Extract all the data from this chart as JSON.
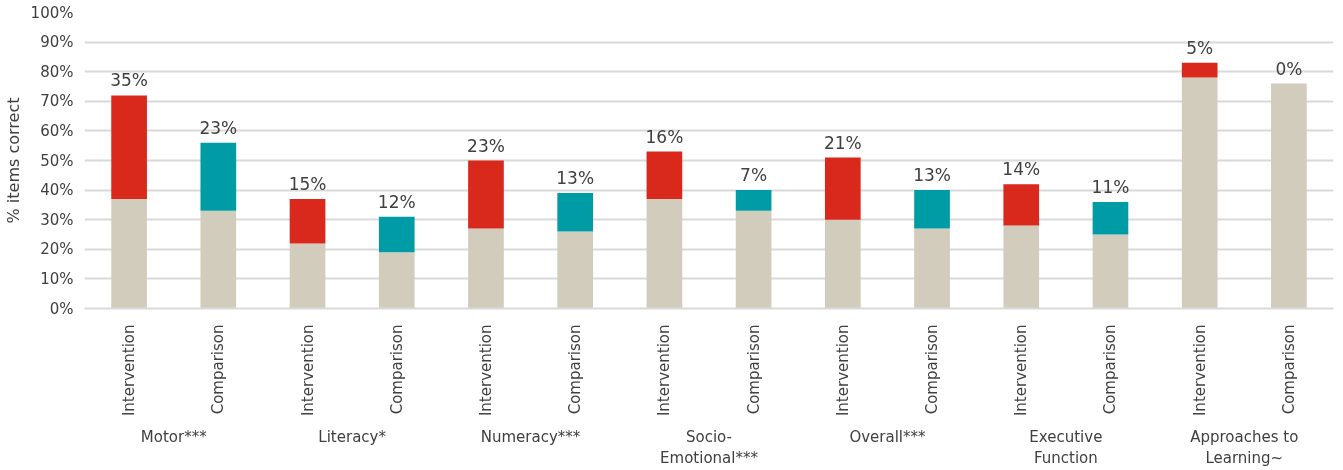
{
  "chart_data": {
    "type": "bar",
    "stacked": true,
    "ylabel": "% items correct",
    "categories": [
      "Intervention",
      "Comparison",
      "Intervention",
      "Comparison",
      "Intervention",
      "Comparison",
      "Intervention",
      "Comparison",
      "Intervention",
      "Comparison",
      "Intervention",
      "Comparison",
      "Intervention",
      "Comparison"
    ],
    "annotations": [
      "Motor***",
      "Literacy*",
      "Numeracy***",
      "Socio-Emotional***",
      "Overall***",
      "Executive Function",
      "Approaches to Learning~"
    ],
    "series": [
      {
        "color": "#d2ccbd",
        "values": [
          37,
          33,
          22,
          19,
          27,
          26,
          37,
          33,
          30,
          27,
          28,
          25,
          78,
          76
        ]
      },
      {
        "colors": [
          "#d9291c",
          "#009ca6",
          "#d9291c",
          "#009ca6",
          "#d9291c",
          "#009ca6",
          "#d9291c",
          "#009ca6",
          "#d9291c",
          "#009ca6",
          "#d9291c",
          "#009ca6",
          "#d9291c",
          "#009ca6"
        ],
        "values": [
          35,
          23,
          15,
          12,
          23,
          13,
          16,
          7,
          21,
          13,
          14,
          11,
          5,
          0
        ],
        "value_labels": [
          "35%",
          "23%",
          "15%",
          "12%",
          "23%",
          "13%",
          "16%",
          "7%",
          "21%",
          "13%",
          "14%",
          "11%",
          "5%",
          "0%"
        ]
      }
    ],
    "ylim": [
      0,
      100
    ],
    "yticks": [
      {
        "value": 0,
        "label": "0%"
      },
      {
        "value": 10,
        "label": "10%"
      },
      {
        "value": 20,
        "label": "20%"
      },
      {
        "value": 30,
        "label": "30%"
      },
      {
        "value": 40,
        "label": "40%"
      },
      {
        "value": 50,
        "label": "50%"
      },
      {
        "value": 60,
        "label": "60%"
      },
      {
        "value": 70,
        "label": "70%"
      },
      {
        "value": 80,
        "label": "80%"
      },
      {
        "value": 90,
        "label": "90%"
      },
      {
        "value": 100,
        "label": "100%"
      }
    ],
    "grid": "y"
  }
}
